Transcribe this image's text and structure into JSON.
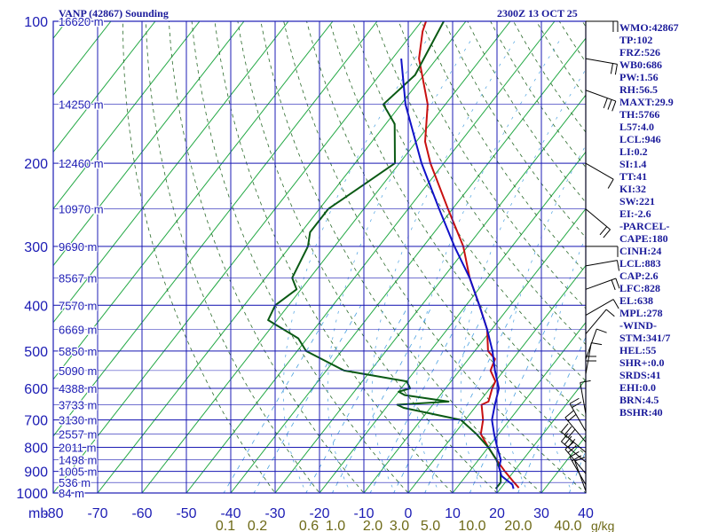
{
  "header": {
    "title": "VANP (42867) Sounding",
    "datetime": "2300Z 13 OCT 25"
  },
  "indices": [
    "WMO:42867",
    "TP:102",
    "FRZ:526",
    "WB0:686",
    "PW:1.56",
    "RH:56.5",
    "MAXT:29.9",
    "TH:5766",
    "L57:4.0",
    "LCL:946",
    "LI:0.2",
    "SI:1.4",
    "TT:41",
    "KI:32",
    "SW:221",
    "EI:-2.6",
    "-PARCEL-",
    "CAPE:180",
    "CINH:24",
    "LCL:883",
    "CAP:2.6",
    "LFC:828",
    "EL:638",
    "MPL:278",
    "-WIND-",
    "STM:341/7",
    "HEL:55",
    "SHR+:0.0",
    "SRDS:41",
    "EHI:0.0",
    "BRN:4.5",
    "BSHR:40"
  ],
  "colors": {
    "background": "#ffffff",
    "grid": "#1c1cb4",
    "isotherm_skew": "#22a844",
    "dry_adiabat": "#2a6a2a",
    "mixing_ratio": "#4aa0e0",
    "temperature": "#c81010",
    "dewpoint": "#0a5a14",
    "parcel": "#1010c8",
    "axis_text": "#1c1cb4",
    "mixing_ratio_text": "#6e6a18",
    "index_text": "#1a1a9a",
    "wind_barb": "#000000"
  },
  "chart_data": {
    "type": "line",
    "title": "VANP (42867) Sounding",
    "subtitle": "2300Z 13 OCT 25",
    "xlabel": "",
    "ylabel": "mb",
    "xlim": [
      -80,
      40
    ],
    "ylim": [
      1000,
      100
    ],
    "y_scale": "log",
    "grid": true,
    "x_ticks": [
      -80,
      -70,
      -60,
      -50,
      -40,
      -30,
      -20,
      -10,
      0,
      10,
      20,
      30,
      40
    ],
    "x_tick_labels": [
      "-80",
      "-70",
      "-60",
      "-50",
      "-40",
      "-30",
      "-20",
      "-10",
      "0",
      "10",
      "20",
      "30",
      "40"
    ],
    "y_ticks": [
      100,
      200,
      300,
      400,
      500,
      600,
      700,
      800,
      900,
      1000
    ],
    "y_tick_labels": [
      "100",
      "200",
      "300",
      "400",
      "500",
      "600",
      "700",
      "800",
      "900",
      "1000"
    ],
    "y_axis_unit": "mb",
    "heights": [
      {
        "p": 100,
        "label": "16620 m"
      },
      {
        "p": 150,
        "label": "14250 m"
      },
      {
        "p": 200,
        "label": "12460 m"
      },
      {
        "p": 250,
        "label": "10970 m"
      },
      {
        "p": 300,
        "label": "9690 m"
      },
      {
        "p": 350,
        "label": "8567 m"
      },
      {
        "p": 400,
        "label": "7570 m"
      },
      {
        "p": 450,
        "label": "6669 m"
      },
      {
        "p": 500,
        "label": "5850 m"
      },
      {
        "p": 550,
        "label": "5090 m"
      },
      {
        "p": 600,
        "label": "4388 m"
      },
      {
        "p": 650,
        "label": "3733 m"
      },
      {
        "p": 700,
        "label": "3130 m"
      },
      {
        "p": 750,
        "label": "2557 m"
      },
      {
        "p": 800,
        "label": "2011 m"
      },
      {
        "p": 850,
        "label": "1498 m"
      },
      {
        "p": 900,
        "label": "1005 m"
      },
      {
        "p": 950,
        "label": "536 m"
      },
      {
        "p": 1000,
        "label": "84 m"
      }
    ],
    "mixing_ratio_labels": [
      {
        "w": 0.1,
        "label": "0.1"
      },
      {
        "w": 0.2,
        "label": "0.2"
      },
      {
        "w": 0.6,
        "label": "0.6"
      },
      {
        "w": 1.0,
        "label": "1.0"
      },
      {
        "w": 2.0,
        "label": "2.0"
      },
      {
        "w": 3.0,
        "label": "3.0"
      },
      {
        "w": 5.0,
        "label": "5.0"
      },
      {
        "w": 10.0,
        "label": "10.0"
      },
      {
        "w": 20.0,
        "label": "20.0"
      },
      {
        "w": 40.0,
        "label": "40.0"
      }
    ],
    "mixing_ratio_unit": "g/kg",
    "series": [
      {
        "key": "temperature",
        "points": [
          [
            100,
            -79
          ],
          [
            105,
            -78
          ],
          [
            120,
            -74
          ],
          [
            150,
            -64
          ],
          [
            180,
            -58
          ],
          [
            200,
            -53
          ],
          [
            250,
            -41
          ],
          [
            300,
            -31
          ],
          [
            350,
            -24
          ],
          [
            400,
            -17
          ],
          [
            450,
            -11
          ],
          [
            500,
            -7
          ],
          [
            520,
            -4
          ],
          [
            550,
            -3
          ],
          [
            580,
            0
          ],
          [
            600,
            0.5
          ],
          [
            640,
            2
          ],
          [
            650,
            1
          ],
          [
            700,
            4
          ],
          [
            750,
            6
          ],
          [
            800,
            10
          ],
          [
            850,
            14
          ],
          [
            900,
            18
          ],
          [
            950,
            22
          ],
          [
            975,
            24
          ]
        ]
      },
      {
        "key": "dewpoint",
        "points": [
          [
            100,
            -75
          ],
          [
            130,
            -72
          ],
          [
            150,
            -74
          ],
          [
            165,
            -68
          ],
          [
            200,
            -61
          ],
          [
            220,
            -64
          ],
          [
            250,
            -68
          ],
          [
            280,
            -68
          ],
          [
            300,
            -66
          ],
          [
            350,
            -64
          ],
          [
            370,
            -61
          ],
          [
            400,
            -63
          ],
          [
            430,
            -62
          ],
          [
            470,
            -52
          ],
          [
            500,
            -48
          ],
          [
            550,
            -36
          ],
          [
            580,
            -20
          ],
          [
            600,
            -18
          ],
          [
            610,
            -20
          ],
          [
            620,
            -18
          ],
          [
            640,
            -7
          ],
          [
            650,
            -18
          ],
          [
            660,
            -16
          ],
          [
            700,
            -1
          ],
          [
            750,
            5
          ],
          [
            800,
            10
          ],
          [
            850,
            14
          ],
          [
            900,
            17
          ],
          [
            950,
            19
          ],
          [
            980,
            19
          ]
        ]
      },
      {
        "key": "parcel",
        "points": [
          [
            120,
            -78
          ],
          [
            150,
            -69
          ],
          [
            200,
            -55
          ],
          [
            250,
            -43
          ],
          [
            300,
            -33
          ],
          [
            350,
            -24
          ],
          [
            400,
            -17
          ],
          [
            450,
            -11
          ],
          [
            500,
            -6
          ],
          [
            550,
            -2
          ],
          [
            600,
            2
          ],
          [
            650,
            4
          ],
          [
            700,
            6
          ],
          [
            750,
            9
          ],
          [
            800,
            12
          ],
          [
            850,
            15
          ],
          [
            883,
            16
          ],
          [
            920,
            18
          ],
          [
            960,
            22
          ],
          [
            980,
            23
          ]
        ]
      }
    ],
    "wind_barbs": [
      {
        "p": 100,
        "dir": 270,
        "spd": 15
      },
      {
        "p": 120,
        "dir": 280,
        "spd": 20
      },
      {
        "p": 140,
        "dir": 290,
        "spd": 25
      },
      {
        "p": 200,
        "dir": 300,
        "spd": 10
      },
      {
        "p": 250,
        "dir": 310,
        "spd": 15
      },
      {
        "p": 300,
        "dir": 270,
        "spd": 10
      },
      {
        "p": 330,
        "dir": 260,
        "spd": 10
      },
      {
        "p": 370,
        "dir": 250,
        "spd": 15
      },
      {
        "p": 420,
        "dir": 240,
        "spd": 10
      },
      {
        "p": 460,
        "dir": 220,
        "spd": 10
      },
      {
        "p": 520,
        "dir": 200,
        "spd": 10
      },
      {
        "p": 560,
        "dir": 190,
        "spd": 10
      },
      {
        "p": 600,
        "dir": 180,
        "spd": 15
      },
      {
        "p": 680,
        "dir": 170,
        "spd": 10
      },
      {
        "p": 740,
        "dir": 150,
        "spd": 15
      },
      {
        "p": 780,
        "dir": 140,
        "spd": 20
      },
      {
        "p": 820,
        "dir": 130,
        "spd": 25
      },
      {
        "p": 860,
        "dir": 130,
        "spd": 25
      },
      {
        "p": 910,
        "dir": 140,
        "spd": 20
      },
      {
        "p": 960,
        "dir": 150,
        "spd": 15
      },
      {
        "p": 990,
        "dir": 160,
        "spd": 10
      }
    ]
  }
}
